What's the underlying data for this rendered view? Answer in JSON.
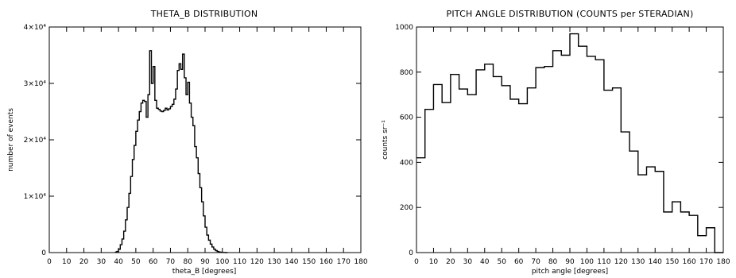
{
  "chart_data": [
    {
      "type": "line",
      "title": "THETA_B DISTRIBUTION",
      "xlabel": "theta_B [degrees]",
      "ylabel": "number of events",
      "xlim": [
        0,
        180
      ],
      "ylim": [
        0,
        40000
      ],
      "x_ticks": [
        0,
        10,
        20,
        30,
        40,
        50,
        60,
        70,
        80,
        90,
        100,
        110,
        120,
        130,
        140,
        150,
        160,
        170,
        180
      ],
      "x_tick_labels": [
        "0",
        "10",
        "20",
        "30",
        "40",
        "50",
        "60",
        "70",
        "80",
        "90",
        "100",
        "110",
        "120",
        "130",
        "140",
        "150",
        "160",
        "170",
        "180"
      ],
      "y_ticks": [
        0,
        10000,
        20000,
        30000,
        40000
      ],
      "y_tick_labels": [
        "0",
        "1×10⁴",
        "2×10⁴",
        "3×10⁴",
        "4×10⁴"
      ],
      "grid": false,
      "step": true,
      "bin_width": 1,
      "x": [
        38,
        39,
        40,
        41,
        42,
        43,
        44,
        45,
        46,
        47,
        48,
        49,
        50,
        51,
        52,
        53,
        54,
        55,
        56,
        57,
        58,
        59,
        60,
        61,
        62,
        63,
        64,
        65,
        66,
        67,
        68,
        69,
        70,
        71,
        72,
        73,
        74,
        75,
        76,
        77,
        78,
        79,
        80,
        81,
        82,
        83,
        84,
        85,
        86,
        87,
        88,
        89,
        90,
        91,
        92,
        93,
        94,
        95,
        96,
        97,
        98,
        99,
        100,
        101,
        102
      ],
      "values": [
        100,
        200,
        600,
        1400,
        2400,
        3800,
        5800,
        8000,
        10500,
        13500,
        16500,
        19000,
        21500,
        23500,
        25000,
        26500,
        27000,
        26800,
        24000,
        28000,
        35800,
        30000,
        33000,
        27000,
        25600,
        25400,
        25100,
        25000,
        25200,
        25600,
        25300,
        25500,
        25900,
        26300,
        27200,
        29000,
        32300,
        33500,
        32500,
        35200,
        31000,
        28000,
        30200,
        26500,
        24000,
        22500,
        18800,
        16800,
        14000,
        11500,
        9000,
        6500,
        4500,
        3100,
        2200,
        1500,
        1000,
        600,
        350,
        200,
        100,
        60,
        30,
        15,
        0
      ]
    },
    {
      "type": "line",
      "title": "PITCH ANGLE DISTRIBUTION (COUNTS per STERADIAN)",
      "xlabel": "pitch angle [degrees]",
      "ylabel": "counts sr⁻¹",
      "xlim": [
        0,
        180
      ],
      "ylim": [
        0,
        1000
      ],
      "x_ticks": [
        0,
        10,
        20,
        30,
        40,
        50,
        60,
        70,
        80,
        90,
        100,
        110,
        120,
        130,
        140,
        150,
        160,
        170,
        180
      ],
      "x_tick_labels": [
        "0",
        "10",
        "20",
        "30",
        "40",
        "50",
        "60",
        "70",
        "80",
        "90",
        "100",
        "110",
        "120",
        "130",
        "140",
        "150",
        "160",
        "170",
        "180"
      ],
      "y_ticks": [
        0,
        200,
        400,
        600,
        800,
        1000
      ],
      "y_tick_labels": [
        "0",
        "200",
        "400",
        "600",
        "800",
        "1000"
      ],
      "grid": false,
      "step": true,
      "bin_width": 5,
      "x": [
        0,
        5,
        10,
        15,
        20,
        25,
        30,
        35,
        40,
        45,
        50,
        55,
        60,
        65,
        70,
        75,
        80,
        85,
        90,
        95,
        100,
        105,
        110,
        115,
        120,
        125,
        130,
        135,
        140,
        145,
        150,
        155,
        160,
        165,
        170,
        175
      ],
      "values": [
        420,
        635,
        745,
        665,
        790,
        725,
        700,
        810,
        835,
        780,
        740,
        680,
        660,
        730,
        820,
        825,
        895,
        875,
        970,
        915,
        870,
        855,
        720,
        730,
        535,
        450,
        345,
        380,
        360,
        180,
        225,
        180,
        165,
        75,
        110,
        0
      ]
    }
  ]
}
